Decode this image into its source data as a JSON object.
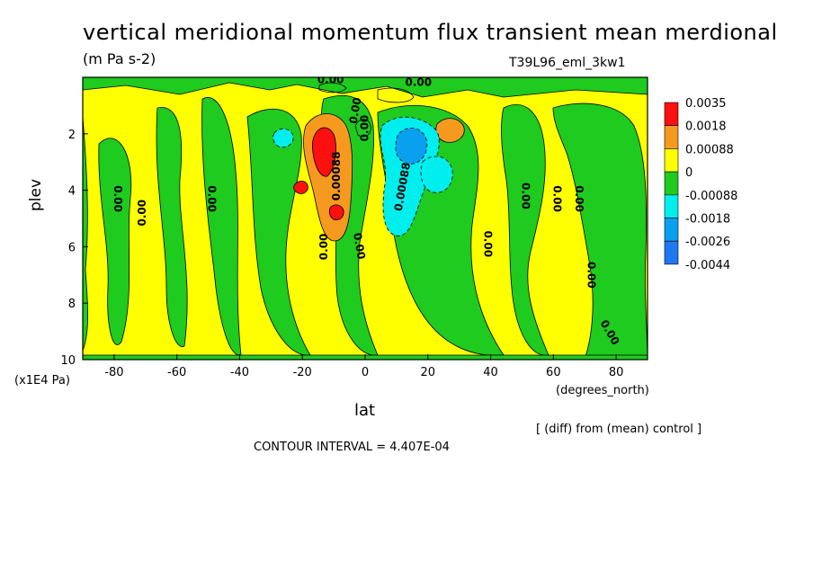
{
  "chart_data": {
    "type": "heatmap",
    "title": "vertical meridional momentum flux transient mean merdional",
    "units": "(m Pa s-2)",
    "run_id": "T39L96_eml_3kw1",
    "xlabel": "lat",
    "ylabel": "plev",
    "x_units": "(degrees_north)",
    "y_units": "(x1E4 Pa)",
    "xlim": [
      -90,
      90
    ],
    "ylim": [
      10,
      0
    ],
    "x_ticks": [
      -80,
      -60,
      -40,
      -20,
      0,
      20,
      40,
      60,
      80
    ],
    "y_ticks": [
      2,
      4,
      6,
      8,
      10
    ],
    "colorbar_levels": [
      "0.0035",
      "0.0018",
      "0.00088",
      "0",
      "-0.00088",
      "-0.0018",
      "-0.0026",
      "-0.0044"
    ],
    "colorbar_colors": [
      "#ff1010",
      "#f59a1e",
      "#ffff00",
      "#1ecb1e",
      "#00eeee",
      "#0aa0f0",
      "#1e78f0"
    ],
    "diff_note": "[ (diff) from (mean) control ]",
    "contour_interval": "CONTOUR INTERVAL = 4.407E-04",
    "contour_labels": [
      "0.00",
      "0.00",
      "0.00",
      "0.00",
      "0.00",
      "0.00",
      "0.00",
      "0.00",
      "0.00",
      "0.00",
      "0.00",
      "0.00",
      "0.00",
      "0.00",
      "0.00088",
      "0.00088",
      "0.00"
    ],
    "features": [
      {
        "lat": -13,
        "plev": 3.0,
        "value": 0.0035
      },
      {
        "lat": -8,
        "plev": 5.0,
        "value": 0.0035
      },
      {
        "lat": -10,
        "plev": 3.8,
        "value": 0.0018
      },
      {
        "lat": -11,
        "plev": 3.5,
        "value": 0.00088
      },
      {
        "lat": 27,
        "plev": 2.0,
        "value": 0.0018
      },
      {
        "lat": 14,
        "plev": 2.5,
        "value": -0.0026
      },
      {
        "lat": 12,
        "plev": 3.5,
        "value": -0.0018
      },
      {
        "lat": 25,
        "plev": 3.8,
        "value": -0.0018
      },
      {
        "lat": -24,
        "plev": 2.2,
        "value": -0.0018
      },
      {
        "lat": 10,
        "plev": 5.0,
        "value": -0.00088
      }
    ]
  }
}
